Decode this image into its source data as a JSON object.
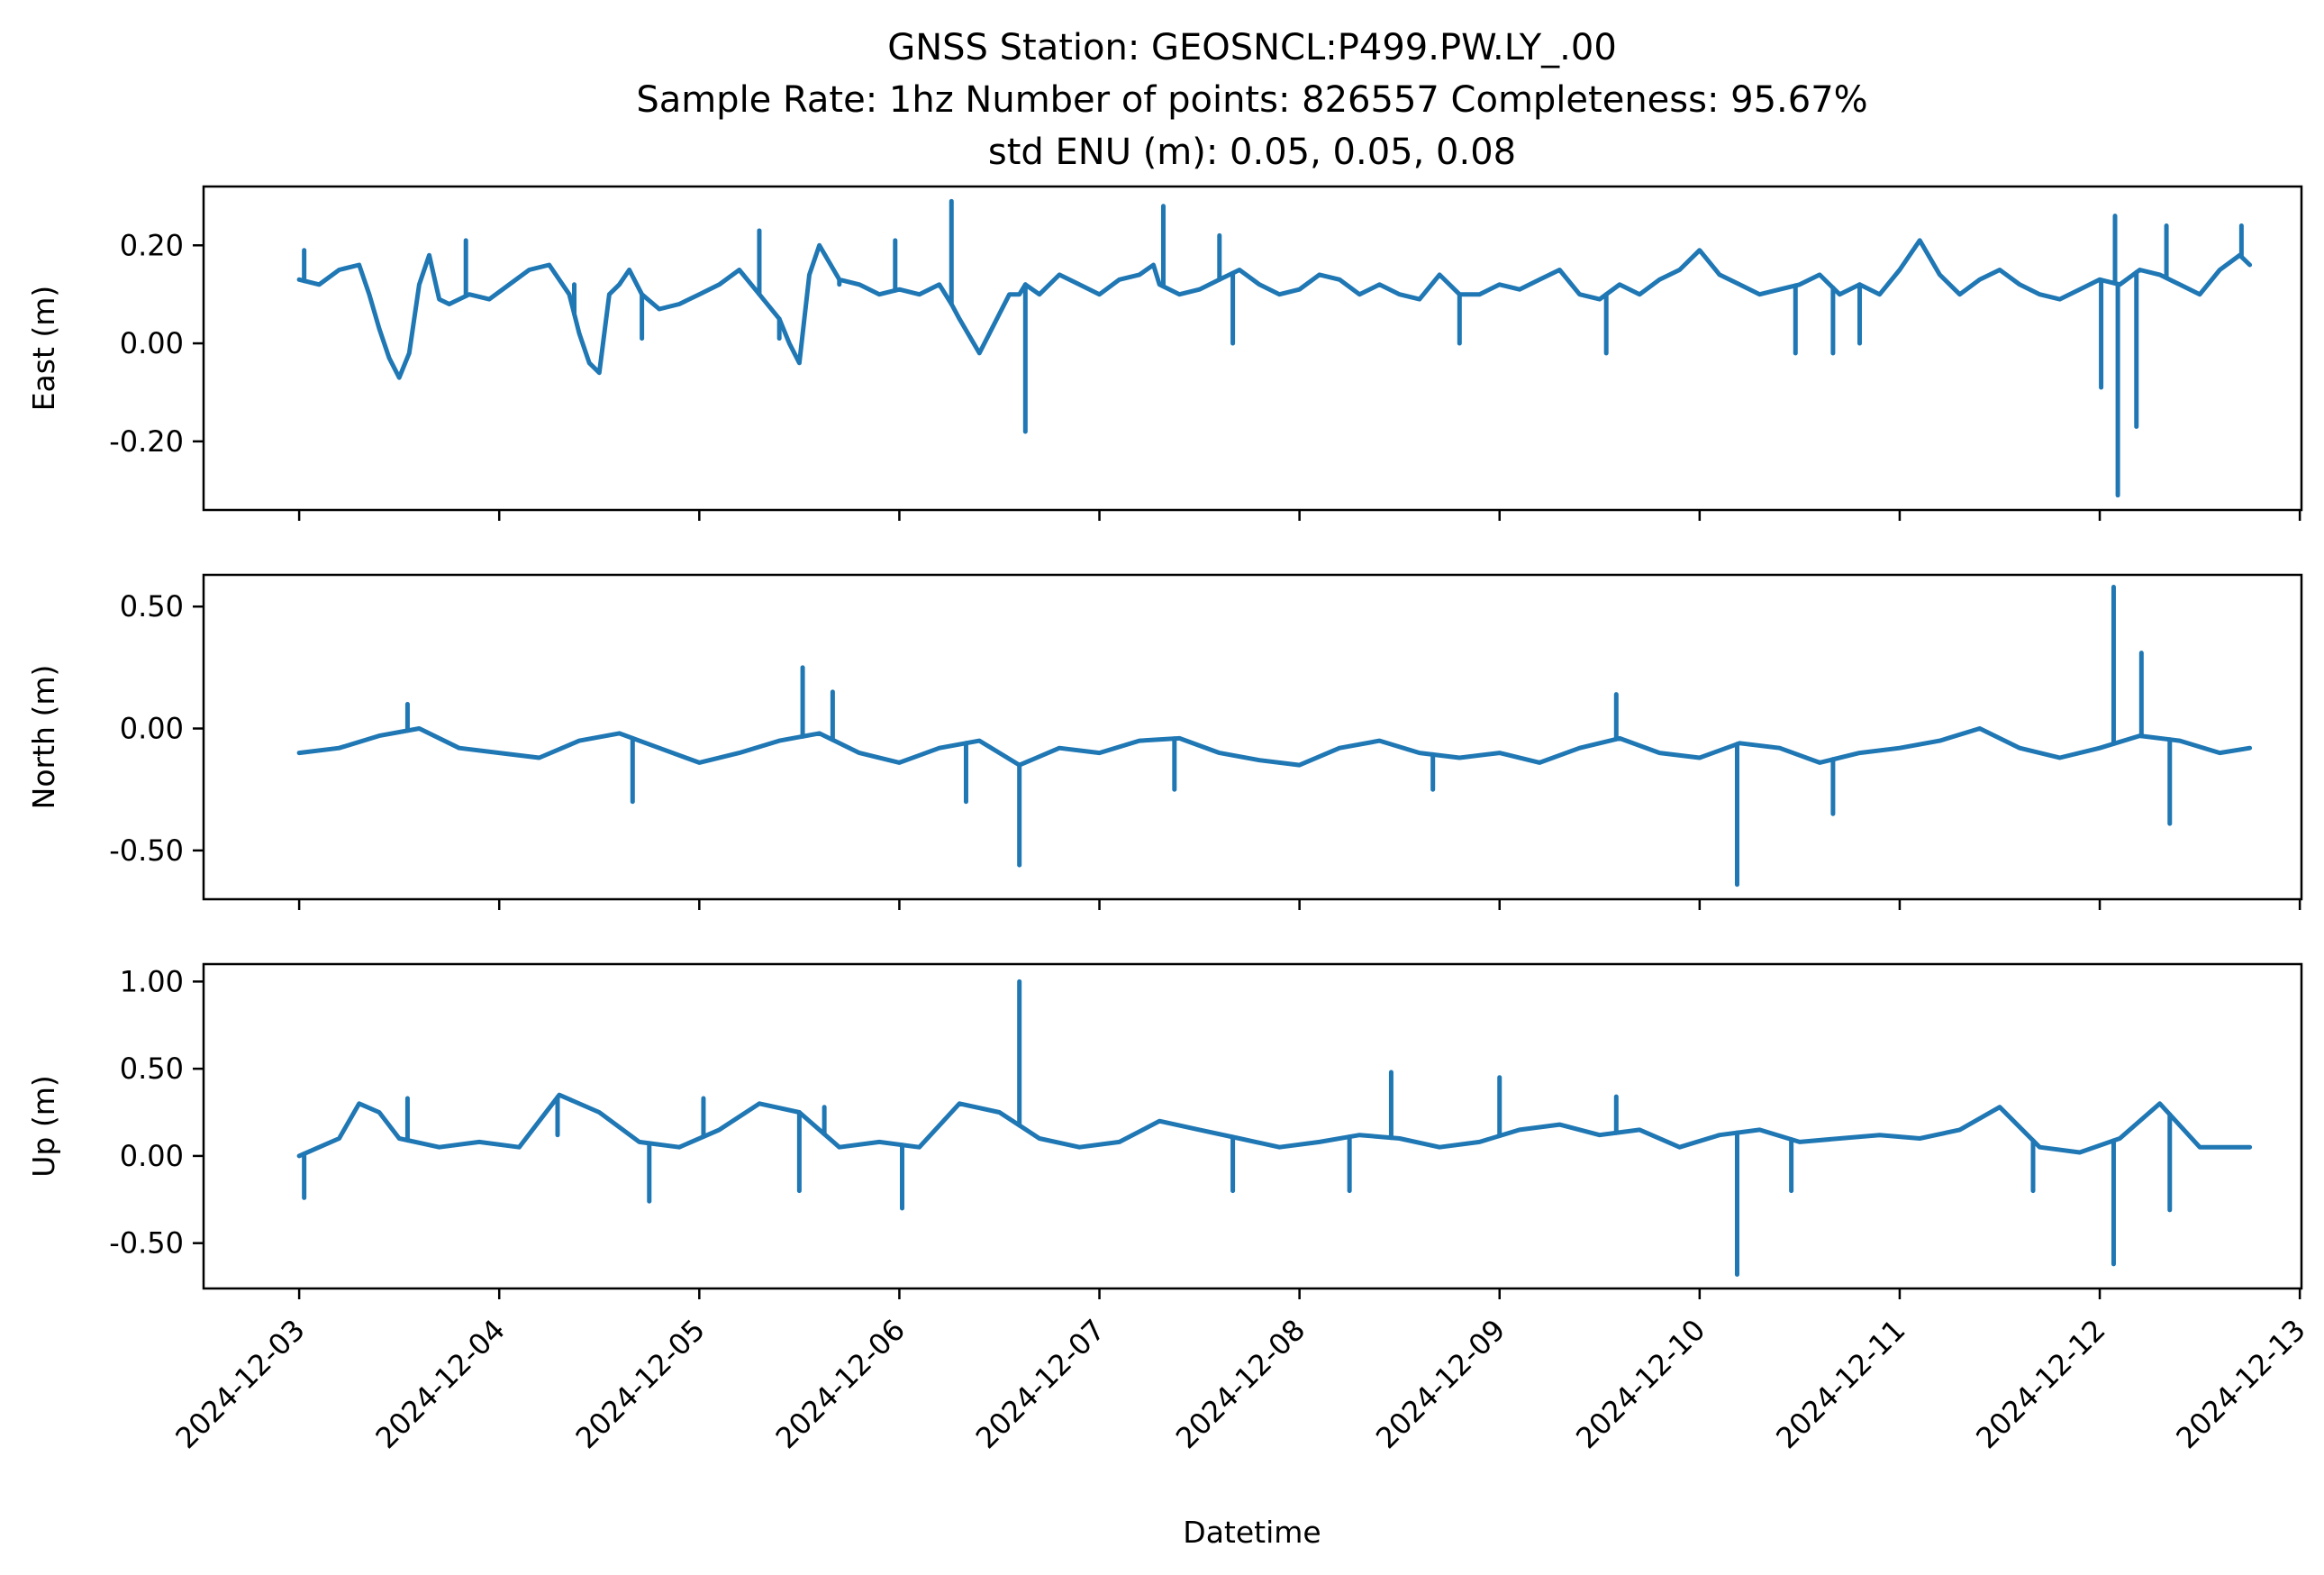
{
  "title_lines": [
    "GNSS Station: GEOSNCL:P499.PW.LY_.00",
    "Sample Rate: 1hz   Number of points: 826557    Completeness:  95.67%",
    "std ENU (m):  0.05, 0.05, 0.08"
  ],
  "xlabel": "Datetime",
  "colors": {
    "series": "#1f77b4",
    "axes": "#000000",
    "background": "#ffffff"
  },
  "x_ticks": [
    "2024-12-03",
    "2024-12-04",
    "2024-12-05",
    "2024-12-06",
    "2024-12-07",
    "2024-12-08",
    "2024-12-09",
    "2024-12-10",
    "2024-12-11",
    "2024-12-12",
    "2024-12-13"
  ],
  "chart_data": [
    {
      "type": "line",
      "ylabel": "East (m)",
      "xlim": [
        "2024-12-02T12:32",
        "2024-12-13T00:12"
      ],
      "ylim": [
        -0.34,
        0.32
      ],
      "y_ticks": [
        "0.20",
        "0.00",
        "-0.20"
      ],
      "y_tick_values": [
        0.2,
        0.0,
        -0.2
      ],
      "show_x_tick_labels": false,
      "series": [
        {
          "x": [
            "2024-12-03T00:00",
            "2024-12-03T02:24",
            "2024-12-03T04:48",
            "2024-12-03T07:12",
            "2024-12-03T08:24",
            "2024-12-03T09:36",
            "2024-12-03T10:48",
            "2024-12-03T12:00",
            "2024-12-03T13:12",
            "2024-12-03T14:24",
            "2024-12-03T15:36",
            "2024-12-03T16:48",
            "2024-12-03T18:00",
            "2024-12-03T20:24",
            "2024-12-03T22:48",
            "2024-12-04T01:12",
            "2024-12-04T03:36",
            "2024-12-04T06:00",
            "2024-12-04T08:24",
            "2024-12-04T09:36",
            "2024-12-04T10:48",
            "2024-12-04T12:00",
            "2024-12-04T13:12",
            "2024-12-04T14:24",
            "2024-12-04T15:36",
            "2024-12-04T17:07",
            "2024-12-04T19:12",
            "2024-12-04T21:36",
            "2024-12-05T00:00",
            "2024-12-05T02:24",
            "2024-12-05T04:48",
            "2024-12-05T07:12",
            "2024-12-05T09:36",
            "2024-12-05T10:48",
            "2024-12-05T12:00",
            "2024-12-05T13:12",
            "2024-12-05T14:24",
            "2024-12-05T16:48",
            "2024-12-05T19:12",
            "2024-12-05T21:36",
            "2024-12-06T00:00",
            "2024-12-06T02:24",
            "2024-12-06T04:48",
            "2024-12-06T06:15",
            "2024-12-06T07:12",
            "2024-12-06T09:36",
            "2024-12-06T12:00",
            "2024-12-06T13:12",
            "2024-12-06T14:24",
            "2024-12-06T15:07",
            "2024-12-06T16:48",
            "2024-12-06T19:12",
            "2024-12-06T21:36",
            "2024-12-07T00:00",
            "2024-12-07T02:24",
            "2024-12-07T04:48",
            "2024-12-07T06:29",
            "2024-12-07T07:12",
            "2024-12-07T09:36",
            "2024-12-07T12:00",
            "2024-12-07T14:24",
            "2024-12-07T16:48",
            "2024-12-07T19:12",
            "2024-12-07T21:36",
            "2024-12-08T00:00",
            "2024-12-08T02:24",
            "2024-12-08T04:48",
            "2024-12-08T07:12",
            "2024-12-08T09:36",
            "2024-12-08T12:00",
            "2024-12-08T14:24",
            "2024-12-08T16:48",
            "2024-12-08T19:12",
            "2024-12-08T21:36",
            "2024-12-09T00:00",
            "2024-12-09T02:24",
            "2024-12-09T04:48",
            "2024-12-09T07:12",
            "2024-12-09T09:36",
            "2024-12-09T12:00",
            "2024-12-09T14:24",
            "2024-12-09T16:48",
            "2024-12-09T19:12",
            "2024-12-09T21:36",
            "2024-12-10T00:00",
            "2024-12-10T02:24",
            "2024-12-10T04:48",
            "2024-12-10T07:12",
            "2024-12-10T09:36",
            "2024-12-10T12:00",
            "2024-12-10T14:24",
            "2024-12-10T16:48",
            "2024-12-10T19:12",
            "2024-12-10T21:36",
            "2024-12-11T00:00",
            "2024-12-11T02:24",
            "2024-12-11T04:48",
            "2024-12-11T07:12",
            "2024-12-11T09:36",
            "2024-12-11T12:00",
            "2024-12-11T14:24",
            "2024-12-11T16:48",
            "2024-12-11T19:12",
            "2024-12-11T21:36",
            "2024-12-12T00:00",
            "2024-12-12T02:24",
            "2024-12-12T04:48",
            "2024-12-12T07:12",
            "2024-12-12T09:36",
            "2024-12-12T12:00",
            "2024-12-12T14:24",
            "2024-12-12T16:48",
            "2024-12-12T18:00"
          ],
          "y": [
            0.13,
            0.12,
            0.15,
            0.16,
            0.1,
            0.03,
            -0.03,
            -0.07,
            -0.02,
            0.12,
            0.18,
            0.09,
            0.08,
            0.1,
            0.09,
            0.12,
            0.15,
            0.16,
            0.1,
            0.02,
            -0.04,
            -0.06,
            0.1,
            0.12,
            0.15,
            0.1,
            0.07,
            0.08,
            0.1,
            0.12,
            0.15,
            0.1,
            0.05,
            0.0,
            -0.04,
            0.14,
            0.2,
            0.13,
            0.12,
            0.1,
            0.11,
            0.1,
            0.12,
            0.08,
            0.05,
            -0.02,
            0.06,
            0.1,
            0.1,
            0.12,
            0.1,
            0.14,
            0.12,
            0.1,
            0.13,
            0.14,
            0.16,
            0.12,
            0.1,
            0.11,
            0.13,
            0.15,
            0.12,
            0.1,
            0.11,
            0.14,
            0.13,
            0.1,
            0.12,
            0.1,
            0.09,
            0.14,
            0.1,
            0.1,
            0.12,
            0.11,
            0.13,
            0.15,
            0.1,
            0.09,
            0.12,
            0.1,
            0.13,
            0.15,
            0.19,
            0.14,
            0.12,
            0.1,
            0.11,
            0.12,
            0.14,
            0.1,
            0.12,
            0.1,
            0.15,
            0.21,
            0.14,
            0.1,
            0.13,
            0.15,
            0.12,
            0.1,
            0.09,
            0.11,
            0.13,
            0.12,
            0.15,
            0.14,
            0.12,
            0.1,
            0.15,
            0.18,
            0.16
          ]
        }
      ],
      "spikes": [
        {
          "x": "2024-12-03T00:36",
          "y": 0.19
        },
        {
          "x": "2024-12-03T20:00",
          "y": 0.21
        },
        {
          "x": "2024-12-04T09:00",
          "y": 0.12
        },
        {
          "x": "2024-12-04T17:07",
          "y": 0.01
        },
        {
          "x": "2024-12-05T07:12",
          "y": 0.23
        },
        {
          "x": "2024-12-05T09:36",
          "y": 0.01
        },
        {
          "x": "2024-12-05T16:48",
          "y": 0.12
        },
        {
          "x": "2024-12-05T23:30",
          "y": 0.21
        },
        {
          "x": "2024-12-06T06:15",
          "y": 0.29
        },
        {
          "x": "2024-12-06T15:07",
          "y": -0.18
        },
        {
          "x": "2024-12-07T07:40",
          "y": 0.28
        },
        {
          "x": "2024-12-07T14:24",
          "y": 0.22
        },
        {
          "x": "2024-12-07T16:00",
          "y": 0.0
        },
        {
          "x": "2024-12-08T19:12",
          "y": 0.0
        },
        {
          "x": "2024-12-09T12:48",
          "y": -0.02
        },
        {
          "x": "2024-12-10T11:30",
          "y": -0.02
        },
        {
          "x": "2024-12-10T16:00",
          "y": -0.02
        },
        {
          "x": "2024-12-10T19:12",
          "y": 0.0
        },
        {
          "x": "2024-12-12T00:10",
          "y": -0.09
        },
        {
          "x": "2024-12-12T01:50",
          "y": 0.26
        },
        {
          "x": "2024-12-12T02:10",
          "y": -0.31
        },
        {
          "x": "2024-12-12T04:24",
          "y": -0.17
        },
        {
          "x": "2024-12-12T08:00",
          "y": 0.24
        },
        {
          "x": "2024-12-12T17:00",
          "y": 0.24
        }
      ]
    },
    {
      "type": "line",
      "ylabel": "North (m)",
      "xlim": [
        "2024-12-02T12:32",
        "2024-12-13T00:12"
      ],
      "ylim": [
        -0.7,
        0.63
      ],
      "y_ticks": [
        "0.50",
        "0.00",
        "-0.50"
      ],
      "y_tick_values": [
        0.5,
        0.0,
        -0.5
      ],
      "show_x_tick_labels": false,
      "series": [
        {
          "x": [
            "2024-12-03T00:00",
            "2024-12-03T04:48",
            "2024-12-03T09:36",
            "2024-12-03T14:24",
            "2024-12-03T19:12",
            "2024-12-04T00:00",
            "2024-12-04T04:48",
            "2024-12-04T09:36",
            "2024-12-04T14:24",
            "2024-12-04T19:12",
            "2024-12-05T00:00",
            "2024-12-05T04:48",
            "2024-12-05T09:36",
            "2024-12-05T14:24",
            "2024-12-05T19:12",
            "2024-12-06T00:00",
            "2024-12-06T04:48",
            "2024-12-06T09:36",
            "2024-12-06T14:24",
            "2024-12-06T19:12",
            "2024-12-07T00:00",
            "2024-12-07T04:48",
            "2024-12-07T09:36",
            "2024-12-07T14:24",
            "2024-12-07T19:12",
            "2024-12-08T00:00",
            "2024-12-08T04:48",
            "2024-12-08T09:36",
            "2024-12-08T14:24",
            "2024-12-08T19:12",
            "2024-12-09T00:00",
            "2024-12-09T04:48",
            "2024-12-09T09:36",
            "2024-12-09T14:24",
            "2024-12-09T19:12",
            "2024-12-10T00:00",
            "2024-12-10T04:48",
            "2024-12-10T09:36",
            "2024-12-10T14:24",
            "2024-12-10T19:12",
            "2024-12-11T00:00",
            "2024-12-11T04:48",
            "2024-12-11T09:36",
            "2024-12-11T14:24",
            "2024-12-11T19:12",
            "2024-12-12T00:00",
            "2024-12-12T04:48",
            "2024-12-12T09:36",
            "2024-12-12T14:24",
            "2024-12-12T18:00"
          ],
          "y": [
            -0.1,
            -0.08,
            -0.03,
            0.0,
            -0.08,
            -0.1,
            -0.12,
            -0.05,
            -0.02,
            -0.08,
            -0.14,
            -0.1,
            -0.05,
            -0.02,
            -0.1,
            -0.14,
            -0.08,
            -0.05,
            -0.15,
            -0.08,
            -0.1,
            -0.05,
            -0.04,
            -0.1,
            -0.13,
            -0.15,
            -0.08,
            -0.05,
            -0.1,
            -0.12,
            -0.1,
            -0.14,
            -0.08,
            -0.04,
            -0.1,
            -0.12,
            -0.06,
            -0.08,
            -0.14,
            -0.1,
            -0.08,
            -0.05,
            0.0,
            -0.08,
            -0.12,
            -0.08,
            -0.03,
            -0.05,
            -0.1,
            -0.08
          ]
        }
      ],
      "spikes": [
        {
          "x": "2024-12-03T13:00",
          "y": 0.1
        },
        {
          "x": "2024-12-04T16:00",
          "y": -0.3
        },
        {
          "x": "2024-12-05T12:24",
          "y": 0.25
        },
        {
          "x": "2024-12-05T16:00",
          "y": 0.15
        },
        {
          "x": "2024-12-06T08:00",
          "y": -0.3
        },
        {
          "x": "2024-12-06T14:24",
          "y": -0.56
        },
        {
          "x": "2024-12-07T09:00",
          "y": -0.25
        },
        {
          "x": "2024-12-08T16:00",
          "y": -0.25
        },
        {
          "x": "2024-12-09T14:00",
          "y": 0.14
        },
        {
          "x": "2024-12-10T04:30",
          "y": -0.64
        },
        {
          "x": "2024-12-10T16:00",
          "y": -0.35
        },
        {
          "x": "2024-12-12T01:40",
          "y": 0.58
        },
        {
          "x": "2024-12-12T05:00",
          "y": 0.31
        },
        {
          "x": "2024-12-12T08:24",
          "y": -0.39
        }
      ]
    },
    {
      "type": "line",
      "ylabel": "Up (m)",
      "xlim": [
        "2024-12-02T12:32",
        "2024-12-13T00:12"
      ],
      "ylim": [
        -0.76,
        1.1
      ],
      "y_ticks": [
        "1.00",
        "0.50",
        "0.00",
        "-0.50"
      ],
      "y_tick_values": [
        1.0,
        0.5,
        0.0,
        -0.5
      ],
      "show_x_tick_labels": true,
      "series": [
        {
          "x": [
            "2024-12-03T00:00",
            "2024-12-03T02:24",
            "2024-12-03T04:48",
            "2024-12-03T07:12",
            "2024-12-03T09:36",
            "2024-12-03T12:00",
            "2024-12-03T16:48",
            "2024-12-03T21:36",
            "2024-12-04T02:24",
            "2024-12-04T07:12",
            "2024-12-04T12:00",
            "2024-12-04T16:48",
            "2024-12-04T21:36",
            "2024-12-05T02:24",
            "2024-12-05T07:12",
            "2024-12-05T12:00",
            "2024-12-05T16:48",
            "2024-12-05T21:36",
            "2024-12-06T02:24",
            "2024-12-06T07:12",
            "2024-12-06T12:00",
            "2024-12-06T16:48",
            "2024-12-06T21:36",
            "2024-12-07T02:24",
            "2024-12-07T07:12",
            "2024-12-07T12:00",
            "2024-12-07T16:48",
            "2024-12-07T21:36",
            "2024-12-08T02:24",
            "2024-12-08T07:12",
            "2024-12-08T12:00",
            "2024-12-08T16:48",
            "2024-12-08T21:36",
            "2024-12-09T02:24",
            "2024-12-09T07:12",
            "2024-12-09T12:00",
            "2024-12-09T16:48",
            "2024-12-09T21:36",
            "2024-12-10T02:24",
            "2024-12-10T07:12",
            "2024-12-10T12:00",
            "2024-12-10T16:48",
            "2024-12-10T21:36",
            "2024-12-11T02:24",
            "2024-12-11T07:12",
            "2024-12-11T12:00",
            "2024-12-11T16:48",
            "2024-12-11T21:36",
            "2024-12-12T02:24",
            "2024-12-12T07:12",
            "2024-12-12T12:00",
            "2024-12-12T18:00"
          ],
          "y": [
            0.0,
            0.05,
            0.1,
            0.3,
            0.25,
            0.1,
            0.05,
            0.08,
            0.05,
            0.35,
            0.25,
            0.08,
            0.05,
            0.15,
            0.3,
            0.25,
            0.05,
            0.08,
            0.05,
            0.3,
            0.25,
            0.1,
            0.05,
            0.08,
            0.2,
            0.15,
            0.1,
            0.05,
            0.08,
            0.12,
            0.1,
            0.05,
            0.08,
            0.15,
            0.18,
            0.12,
            0.15,
            0.05,
            0.12,
            0.15,
            0.08,
            0.1,
            0.12,
            0.1,
            0.15,
            0.28,
            0.05,
            0.02,
            0.1,
            0.3,
            0.05,
            0.05
          ]
        }
      ],
      "spikes": [
        {
          "x": "2024-12-03T00:36",
          "y": -0.24
        },
        {
          "x": "2024-12-03T13:00",
          "y": 0.33
        },
        {
          "x": "2024-12-04T07:00",
          "y": 0.12
        },
        {
          "x": "2024-12-04T18:00",
          "y": -0.26
        },
        {
          "x": "2024-12-05T00:30",
          "y": 0.33
        },
        {
          "x": "2024-12-05T12:00",
          "y": -0.2
        },
        {
          "x": "2024-12-05T15:00",
          "y": 0.28
        },
        {
          "x": "2024-12-06T00:20",
          "y": -0.3
        },
        {
          "x": "2024-12-06T14:24",
          "y": 1.0
        },
        {
          "x": "2024-12-07T16:00",
          "y": -0.2
        },
        {
          "x": "2024-12-08T06:00",
          "y": -0.2
        },
        {
          "x": "2024-12-08T11:00",
          "y": 0.48
        },
        {
          "x": "2024-12-09T00:00",
          "y": 0.45
        },
        {
          "x": "2024-12-09T14:00",
          "y": 0.34
        },
        {
          "x": "2024-12-10T04:30",
          "y": -0.68
        },
        {
          "x": "2024-12-10T11:00",
          "y": -0.2
        },
        {
          "x": "2024-12-11T16:00",
          "y": -0.2
        },
        {
          "x": "2024-12-12T01:40",
          "y": -0.62
        },
        {
          "x": "2024-12-12T08:24",
          "y": -0.31
        }
      ]
    }
  ]
}
